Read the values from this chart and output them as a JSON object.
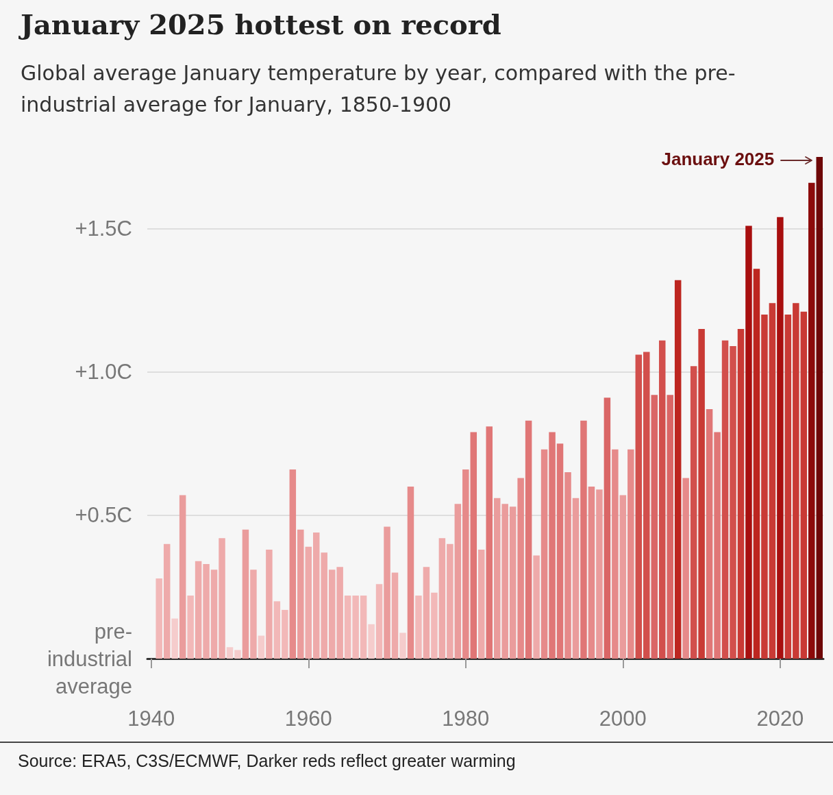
{
  "chart_data": {
    "type": "bar",
    "title": "January 2025 hottest on record",
    "subtitle": "Global average January temperature by year, compared with the pre-industrial average for January, 1850-1900",
    "x": [
      1941,
      1942,
      1943,
      1944,
      1945,
      1946,
      1947,
      1948,
      1949,
      1950,
      1951,
      1952,
      1953,
      1954,
      1955,
      1956,
      1957,
      1958,
      1959,
      1960,
      1961,
      1962,
      1963,
      1964,
      1965,
      1966,
      1967,
      1968,
      1969,
      1970,
      1971,
      1972,
      1973,
      1974,
      1975,
      1976,
      1977,
      1978,
      1979,
      1980,
      1981,
      1982,
      1983,
      1984,
      1985,
      1986,
      1987,
      1988,
      1989,
      1990,
      1991,
      1992,
      1993,
      1994,
      1995,
      1996,
      1997,
      1998,
      1999,
      2000,
      2001,
      2002,
      2003,
      2004,
      2005,
      2006,
      2007,
      2008,
      2009,
      2010,
      2011,
      2012,
      2013,
      2014,
      2015,
      2016,
      2017,
      2018,
      2019,
      2020,
      2021,
      2022,
      2023,
      2024,
      2025
    ],
    "values": [
      0.28,
      0.4,
      0.14,
      0.57,
      0.22,
      0.34,
      0.33,
      0.31,
      0.42,
      0.04,
      0.03,
      0.45,
      0.31,
      0.08,
      0.38,
      0.2,
      0.17,
      0.66,
      0.45,
      0.39,
      0.44,
      0.37,
      0.31,
      0.32,
      0.22,
      0.22,
      0.22,
      0.12,
      0.26,
      0.46,
      0.3,
      0.09,
      0.6,
      0.22,
      0.32,
      0.23,
      0.42,
      0.4,
      0.54,
      0.66,
      0.79,
      0.38,
      0.81,
      0.56,
      0.54,
      0.53,
      0.63,
      0.83,
      0.36,
      0.73,
      0.79,
      0.75,
      0.65,
      0.56,
      0.83,
      0.6,
      0.59,
      0.91,
      0.73,
      0.57,
      0.73,
      1.06,
      1.07,
      0.92,
      1.11,
      0.92,
      1.32,
      0.63,
      1.02,
      1.15,
      0.87,
      0.79,
      1.11,
      1.09,
      1.15,
      1.51,
      1.36,
      1.2,
      1.24,
      1.54,
      1.2,
      1.24,
      1.21,
      1.66,
      1.75
    ],
    "colors": [
      "#f2b8b8",
      "#eeaaaa",
      "#f5cccc",
      "#ea9c9c",
      "#f2b8b8",
      "#eeaaaa",
      "#eeaaaa",
      "#eeaaaa",
      "#eeaaaa",
      "#f5cccc",
      "#f5cccc",
      "#ea9c9c",
      "#eeaaaa",
      "#f5cccc",
      "#eeaaaa",
      "#f2b8b8",
      "#f2b8b8",
      "#e68a8a",
      "#ea9c9c",
      "#eeaaaa",
      "#eeaaaa",
      "#eeaaaa",
      "#eeaaaa",
      "#eeaaaa",
      "#f2b8b8",
      "#f2b8b8",
      "#f2b8b8",
      "#f5cccc",
      "#f2b8b8",
      "#ea9c9c",
      "#eeaaaa",
      "#f5cccc",
      "#e68a8a",
      "#f2b8b8",
      "#eeaaaa",
      "#f2b8b8",
      "#eeaaaa",
      "#eeaaaa",
      "#ea9c9c",
      "#e68a8a",
      "#e07676",
      "#eeaaaa",
      "#e07676",
      "#ea9c9c",
      "#ea9c9c",
      "#ea9c9c",
      "#e68a8a",
      "#e07676",
      "#eeaaaa",
      "#e68a8a",
      "#e07676",
      "#e07676",
      "#e68a8a",
      "#ea9c9c",
      "#e07676",
      "#e68a8a",
      "#ea9c9c",
      "#da6666",
      "#e68a8a",
      "#ea9c9c",
      "#e68a8a",
      "#d24f4c",
      "#d24f4c",
      "#da6666",
      "#d24f4c",
      "#da6666",
      "#bd2620",
      "#e68a8a",
      "#d24f4c",
      "#c93a35",
      "#e07676",
      "#e07676",
      "#d24f4c",
      "#d24f4c",
      "#c93a35",
      "#a80f0f",
      "#bd2620",
      "#c93a35",
      "#c93a35",
      "#a80f0f",
      "#c93a35",
      "#c93a35",
      "#c93a35",
      "#8c0a0a",
      "#6e0707"
    ],
    "xlim": [
      1939.5,
      2025.5
    ],
    "xticks": [
      1940,
      1960,
      1980,
      2000,
      2020
    ],
    "ylim": [
      0,
      1.75
    ],
    "yticks": [
      {
        "value": 0,
        "label": "pre-\nindustrial\naverage"
      },
      {
        "value": 0.5,
        "label": "+0.5C"
      },
      {
        "value": 1.0,
        "label": "+1.0C"
      },
      {
        "value": 1.5,
        "label": "+1.5C"
      }
    ],
    "grid": "y",
    "annotations": [
      {
        "text": "January 2025",
        "x": 2025,
        "y": 1.75
      },
      "Source: ERA5, C3S/ECMWF, Darker reds reflect greater warming"
    ]
  }
}
